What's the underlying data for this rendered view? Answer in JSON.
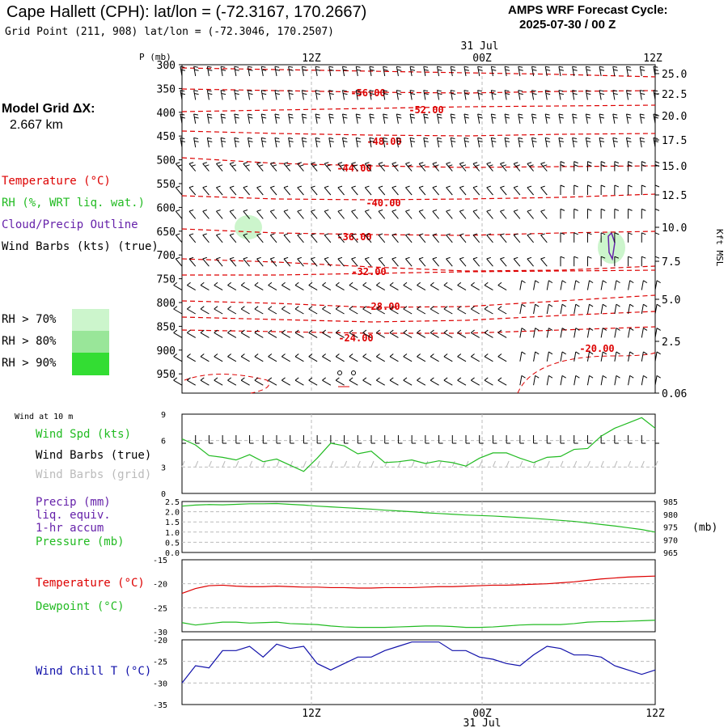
{
  "header": {
    "title": "Cape Hallett (CPH):  lat/lon = (-72.3167, 170.2667)",
    "subtitle": "Grid Point (211, 908) lat/lon = (-72.3046, 170.2507)",
    "cycle_line1": "AMPS WRF Forecast Cycle:",
    "cycle_line2": "2025-07-30 / 00  Z"
  },
  "left_panel": {
    "grid_label": "Model Grid ΔX:",
    "grid_value": "2.667 km",
    "temp_label": "Temperature (°C)",
    "rh_label": "RH (%, WRT liq. wat.)",
    "cloud_label": "Cloud/Precip Outline",
    "wind_label": "Wind Barbs (kts) (true)",
    "rh_legend": [
      {
        "label": "RH > 70%",
        "color": "#ccf5cc"
      },
      {
        "label": "RH > 80%",
        "color": "#99e699"
      },
      {
        "label": "RH > 90%",
        "color": "#33dd33"
      }
    ]
  },
  "colors": {
    "temperature": "#dd0000",
    "rh": "#22bb22",
    "cloud": "#6622aa",
    "wind_chill": "#1111aa",
    "grid_barbs": "#bbbbbb"
  },
  "chart_data": [
    {
      "type": "line",
      "panel": "upper-air",
      "ylabel": "P (mb)",
      "ylabel_right": "Kft MSL",
      "pressure_ticks": [
        "300",
        "350",
        "400",
        "450",
        "500",
        "550",
        "600",
        "650",
        "700",
        "750",
        "800",
        "850",
        "900",
        "950"
      ],
      "height_ticks": [
        "25.0",
        "22.5",
        "20.0",
        "17.5",
        "15.0",
        "12.5",
        "10.0",
        "7.5",
        "5.0",
        "2.5",
        "0.06"
      ],
      "time_ticks_top": [
        "12Z",
        "00Z",
        "12Z"
      ],
      "date_top": "31 Jul",
      "isotherm_labels": [
        "-56.00",
        "-52.00",
        "-48.00",
        "-44.00",
        "-40.00",
        "-36.00",
        "-32.00",
        "-28.00",
        "-24.00",
        "-20.00"
      ]
    },
    {
      "type": "line",
      "panel": "wind-10m",
      "title": "Wind at 10 m",
      "series": [
        {
          "name": "Wind Spd (kts)",
          "values": [
            6.2,
            5.5,
            4.3,
            4.1,
            3.8,
            4.4,
            3.6,
            3.9,
            3.2,
            2.5,
            4.0,
            5.7,
            5.4,
            4.5,
            4.8,
            3.5,
            3.6,
            3.8,
            3.4,
            3.7,
            3.5,
            3.1,
            4.0,
            4.6,
            4.6,
            4.0,
            3.5,
            4.1,
            4.2,
            5.0,
            5.1,
            6.5,
            7.4,
            8.0,
            8.6,
            7.4
          ]
        }
      ],
      "legend": [
        "Wind Spd (kts)",
        "Wind Barbs (true)",
        "Wind Barbs (grid)"
      ],
      "yticks": [
        "0",
        "3",
        "6",
        "9"
      ],
      "ylim": [
        0,
        9
      ]
    },
    {
      "type": "line",
      "panel": "precip-pressure",
      "legend": [
        "Precip (mm)",
        "liq. equiv.",
        "1-hr accum",
        "Pressure (mb)"
      ],
      "yticks_left": [
        "0.0",
        "0.5",
        "1.0",
        "1.5",
        "2.0",
        "2.5"
      ],
      "yticks_right": [
        "985",
        "980",
        "975",
        "970",
        "965"
      ],
      "ylabel_right": "(mb)",
      "series": [
        {
          "name": "Pressure (mb)",
          "values": [
            983.2,
            983.6,
            983.8,
            983.7,
            983.9,
            984.1,
            984.1,
            984.2,
            983.9,
            983.6,
            983.2,
            982.9,
            982.6,
            982.3,
            982.0,
            981.6,
            981.3,
            981.0,
            980.6,
            980.3,
            980.0,
            979.7,
            979.5,
            979.3,
            979.0,
            978.7,
            978.4,
            978.0,
            977.6,
            977.2,
            976.6,
            976.0,
            975.4,
            974.7,
            974.0,
            973.0
          ]
        }
      ],
      "ylim": [
        965,
        985
      ]
    },
    {
      "type": "line",
      "panel": "temperature",
      "legend": [
        "Temperature (°C)",
        "Dewpoint (°C)"
      ],
      "yticks": [
        "-15",
        "-20",
        "-25",
        "-30"
      ],
      "ylim": [
        -30,
        -15
      ],
      "series": [
        {
          "name": "Temperature (°C)",
          "values": [
            -22.0,
            -21.0,
            -20.4,
            -20.3,
            -20.5,
            -20.6,
            -20.6,
            -20.5,
            -20.6,
            -20.7,
            -20.7,
            -20.8,
            -20.8,
            -20.9,
            -20.9,
            -20.8,
            -20.8,
            -20.8,
            -20.7,
            -20.6,
            -20.6,
            -20.5,
            -20.4,
            -20.3,
            -20.3,
            -20.2,
            -20.1,
            -20.0,
            -19.8,
            -19.6,
            -19.3,
            -19.0,
            -18.8,
            -18.6,
            -18.5,
            -18.4
          ]
        },
        {
          "name": "Dewpoint (°C)",
          "values": [
            -28.1,
            -28.6,
            -28.3,
            -28.0,
            -28.0,
            -28.2,
            -28.1,
            -28.0,
            -28.3,
            -28.4,
            -28.5,
            -28.8,
            -29.0,
            -29.1,
            -29.1,
            -29.1,
            -29.0,
            -28.9,
            -28.8,
            -28.8,
            -28.9,
            -29.1,
            -29.1,
            -29.0,
            -28.8,
            -28.6,
            -28.5,
            -28.5,
            -28.5,
            -28.3,
            -28.0,
            -27.9,
            -27.9,
            -27.8,
            -27.7,
            -27.6
          ]
        }
      ]
    },
    {
      "type": "line",
      "panel": "wind-chill",
      "legend": [
        "Wind Chill T (°C)"
      ],
      "yticks": [
        "-20",
        "-25",
        "-30",
        "-35"
      ],
      "ylim": [
        -35,
        -20
      ],
      "time_ticks_bottom": [
        "12Z",
        "00Z",
        "12Z"
      ],
      "date_bottom": "31 Jul",
      "series": [
        {
          "name": "Wind Chill T (°C)",
          "values": [
            -30.0,
            -26.0,
            -26.5,
            -22.5,
            -22.5,
            -21.5,
            -24.0,
            -21.0,
            -22.0,
            -21.5,
            -25.5,
            -27.0,
            -25.5,
            -24.0,
            -24.0,
            -22.5,
            -21.5,
            -20.5,
            -20.5,
            -20.5,
            -22.5,
            -22.5,
            -24.0,
            -24.5,
            -25.5,
            -26.0,
            -23.5,
            -21.5,
            -22.0,
            -23.5,
            -23.5,
            -24.0,
            -26.0,
            -27.0,
            -28.0,
            -27.0
          ]
        }
      ]
    }
  ]
}
